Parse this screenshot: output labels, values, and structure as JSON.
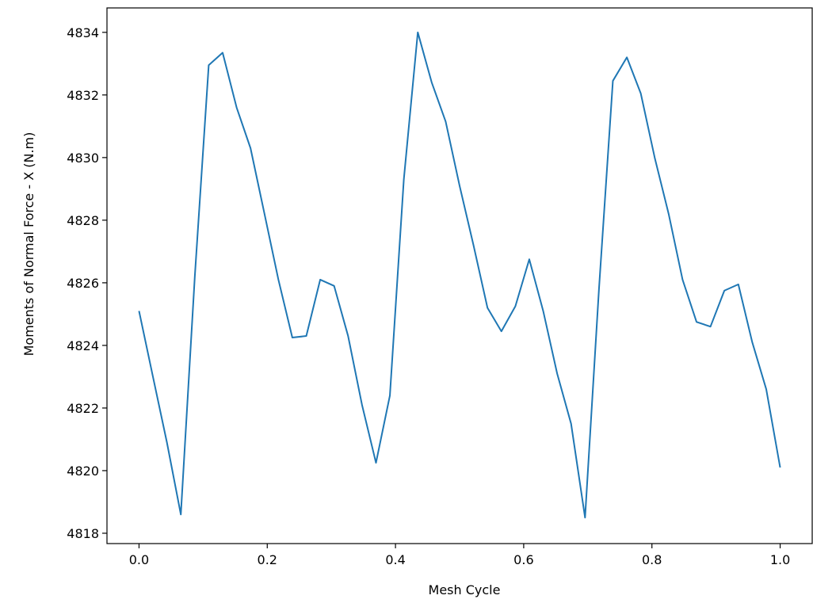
{
  "chart_data": {
    "type": "line",
    "xlabel": "Mesh Cycle",
    "ylabel": "Moments of Normal Force - X (N.m)",
    "xlim": [
      -0.05,
      1.05
    ],
    "ylim": [
      4817.67,
      4834.78
    ],
    "xticks": [
      0.0,
      0.2,
      0.4,
      0.6,
      0.8,
      1.0
    ],
    "xtick_labels": [
      "0.0",
      "0.2",
      "0.4",
      "0.6",
      "0.8",
      "1.0"
    ],
    "yticks": [
      4818,
      4820,
      4822,
      4824,
      4826,
      4828,
      4830,
      4832,
      4834
    ],
    "ytick_labels": [
      "4818",
      "4820",
      "4822",
      "4824",
      "4826",
      "4828",
      "4830",
      "4832",
      "4834"
    ],
    "grid": false,
    "color": "#1f77b4",
    "series": [
      {
        "x": [
          0.0,
          0.0217,
          0.0435,
          0.0652,
          0.087,
          0.1087,
          0.1304,
          0.1522,
          0.1739,
          0.1957,
          0.2174,
          0.2391,
          0.2609,
          0.2826,
          0.3043,
          0.3261,
          0.3478,
          0.3696,
          0.3913,
          0.413,
          0.4348,
          0.4565,
          0.4783,
          0.5,
          0.5217,
          0.5435,
          0.5652,
          0.587,
          0.6087,
          0.6304,
          0.6522,
          0.6739,
          0.6957,
          0.7174,
          0.7391,
          0.7609,
          0.7826,
          0.8043,
          0.8261,
          0.8478,
          0.8696,
          0.8913,
          0.913,
          0.9348,
          0.9565,
          0.9783,
          1.0
        ],
        "y": [
          4825.1,
          4823.0,
          4820.9,
          4818.6,
          4826.2,
          4832.95,
          4833.35,
          4831.6,
          4830.3,
          4828.2,
          4826.1,
          4824.25,
          4824.3,
          4826.1,
          4825.9,
          4824.3,
          4822.1,
          4820.25,
          4822.4,
          4829.3,
          4834.0,
          4832.4,
          4831.15,
          4829.1,
          4827.2,
          4825.2,
          4824.45,
          4825.25,
          4826.75,
          4825.1,
          4823.1,
          4821.5,
          4818.5,
          4825.8,
          4832.45,
          4833.2,
          4832.05,
          4830.0,
          4828.2,
          4826.1,
          4824.75,
          4824.6,
          4825.75,
          4825.95,
          4824.1,
          4822.6,
          4820.1
        ]
      }
    ]
  }
}
